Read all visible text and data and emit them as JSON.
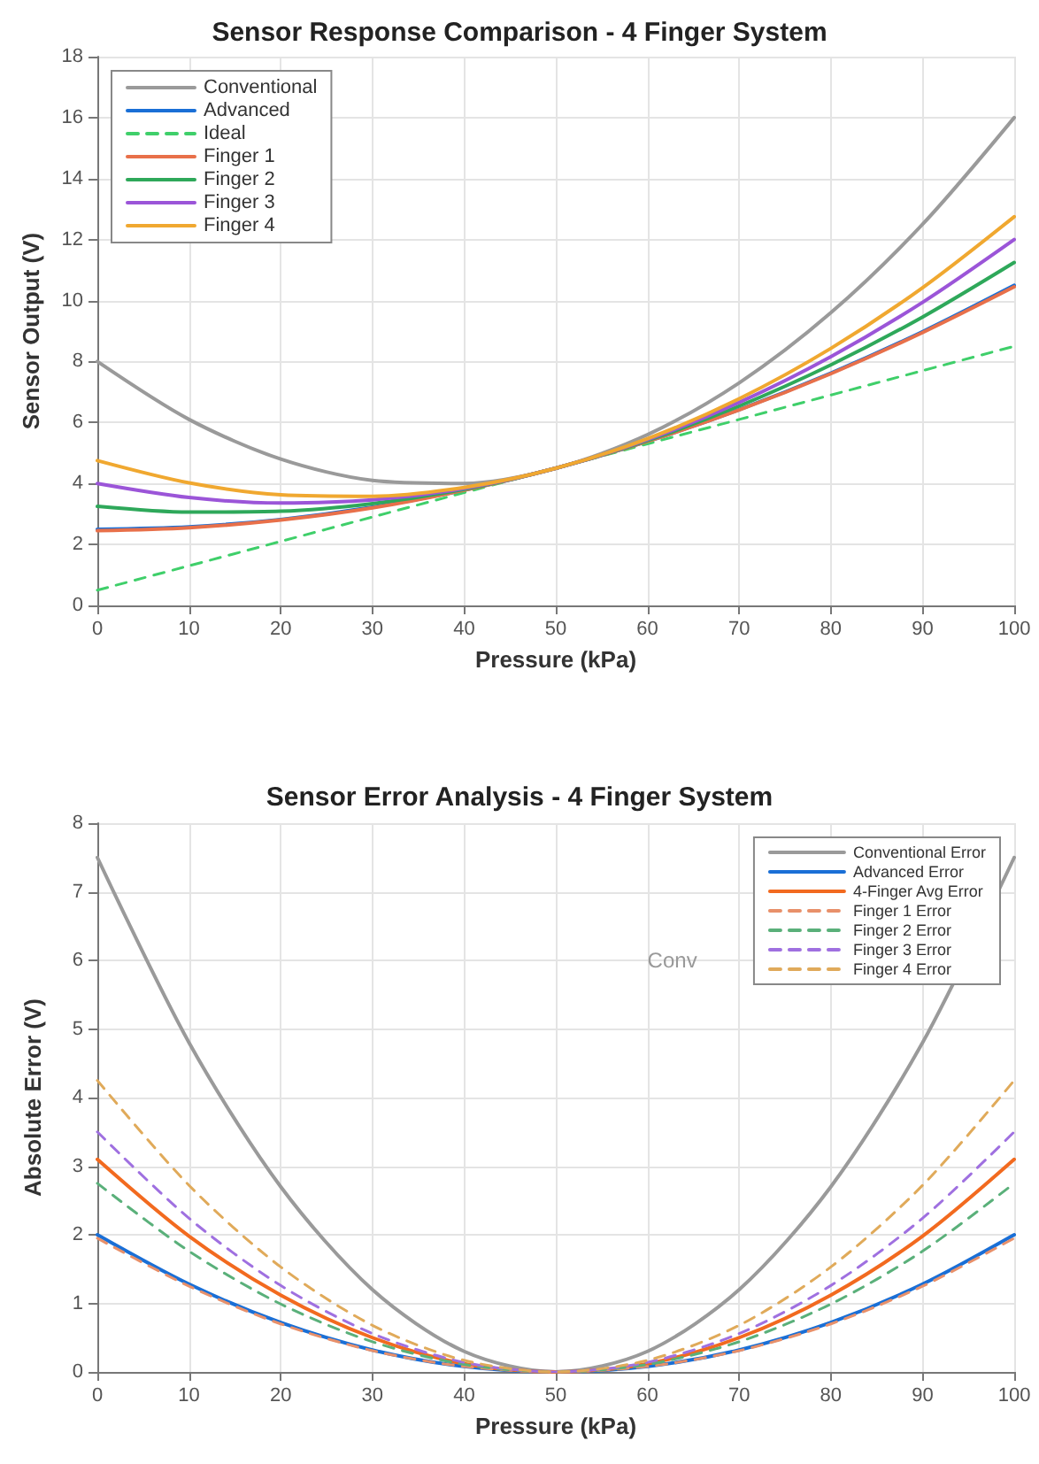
{
  "chart_data": [
    {
      "type": "line",
      "title": "Sensor Response Comparison - 4 Finger System",
      "xlabel": "Pressure (kPa)",
      "ylabel": "Sensor Output (V)",
      "x": [
        0,
        10,
        20,
        30,
        40,
        50,
        60,
        70,
        80,
        90,
        100
      ],
      "xlim": [
        0,
        100
      ],
      "xticks": [
        0,
        10,
        20,
        30,
        40,
        50,
        60,
        70,
        80,
        90,
        100
      ],
      "ylim": [
        0,
        18
      ],
      "yticks": [
        0,
        2,
        4,
        6,
        8,
        10,
        12,
        14,
        16,
        18
      ],
      "grid": true,
      "legend": "top left",
      "marker": "none",
      "series": [
        {
          "name": "Conventional",
          "color": "#9a9a9a",
          "line_style": "solid",
          "values": [
            8.0,
            6.1,
            4.8,
            4.1,
            4.0,
            4.5,
            5.6,
            7.3,
            9.6,
            12.5,
            16.0
          ]
        },
        {
          "name": "Advanced",
          "color": "#1a6fd6",
          "line_style": "solid",
          "values": [
            2.5,
            2.58,
            2.82,
            3.22,
            3.78,
            4.5,
            5.38,
            6.42,
            7.62,
            8.98,
            10.5
          ]
        },
        {
          "name": "Ideal",
          "color": "#3fcf6a",
          "line_style": "dashed",
          "values": [
            0.5,
            1.3,
            2.1,
            2.9,
            3.7,
            4.5,
            5.3,
            6.1,
            6.9,
            7.7,
            8.5
          ]
        },
        {
          "name": "Finger 1",
          "color": "#e8704a",
          "line_style": "solid",
          "values": [
            2.45,
            2.55,
            2.8,
            3.2,
            3.78,
            4.5,
            5.38,
            6.41,
            7.6,
            8.95,
            10.45
          ]
        },
        {
          "name": "Finger 2",
          "color": "#2ea85a",
          "line_style": "solid",
          "values": [
            3.25,
            3.06,
            3.09,
            3.34,
            3.81,
            4.5,
            5.41,
            6.54,
            7.89,
            9.46,
            11.25
          ]
        },
        {
          "name": "Finger 3",
          "color": "#9b55d8",
          "line_style": "solid",
          "values": [
            4.0,
            3.54,
            3.36,
            3.46,
            3.84,
            4.5,
            5.44,
            6.66,
            8.16,
            9.94,
            12.0
          ]
        },
        {
          "name": "Finger 4",
          "color": "#f0a830",
          "line_style": "solid",
          "values": [
            4.75,
            4.02,
            3.63,
            3.58,
            3.87,
            4.5,
            5.47,
            6.78,
            8.43,
            10.42,
            12.75
          ]
        }
      ]
    },
    {
      "type": "line",
      "title": "Sensor Error Analysis - 4 Finger System",
      "xlabel": "Pressure (kPa)",
      "ylabel": "Absolute Error (V)",
      "x": [
        0,
        10,
        20,
        30,
        40,
        50,
        60,
        70,
        80,
        90,
        100
      ],
      "xlim": [
        0,
        100
      ],
      "xticks": [
        0,
        10,
        20,
        30,
        40,
        50,
        60,
        70,
        80,
        90,
        100
      ],
      "ylim": [
        0,
        8
      ],
      "yticks": [
        0,
        1,
        2,
        3,
        4,
        5,
        6,
        7,
        8
      ],
      "grid": true,
      "legend": "top right",
      "marker": "none",
      "annotations": [
        "Conv"
      ],
      "series": [
        {
          "name": "Conventional Error",
          "color": "#9a9a9a",
          "line_style": "solid",
          "values": [
            7.5,
            4.8,
            2.7,
            1.2,
            0.3,
            0,
            0.3,
            1.2,
            2.7,
            4.8,
            7.5
          ]
        },
        {
          "name": "Advanced Error",
          "color": "#1a6fd6",
          "line_style": "solid",
          "values": [
            2.0,
            1.28,
            0.72,
            0.32,
            0.08,
            0,
            0.08,
            0.32,
            0.72,
            1.28,
            2.0
          ]
        },
        {
          "name": "4-Finger Avg Error",
          "color": "#f26a1f",
          "line_style": "solid",
          "values": [
            3.1,
            1.98,
            1.12,
            0.5,
            0.12,
            0,
            0.12,
            0.5,
            1.12,
            1.98,
            3.1
          ]
        },
        {
          "name": "Finger 1 Error",
          "color": "#e8906a",
          "line_style": "dashed",
          "values": [
            1.95,
            1.25,
            0.7,
            0.31,
            0.08,
            0,
            0.08,
            0.31,
            0.7,
            1.25,
            1.95
          ]
        },
        {
          "name": "Finger 2 Error",
          "color": "#5ab07a",
          "line_style": "dashed",
          "values": [
            2.75,
            1.76,
            0.99,
            0.44,
            0.11,
            0,
            0.11,
            0.44,
            0.99,
            1.76,
            2.75
          ]
        },
        {
          "name": "Finger 3 Error",
          "color": "#9f70e0",
          "line_style": "dashed",
          "values": [
            3.5,
            2.24,
            1.26,
            0.56,
            0.14,
            0,
            0.14,
            0.56,
            1.26,
            2.24,
            3.5
          ]
        },
        {
          "name": "Finger 4 Error",
          "color": "#e0aa5a",
          "line_style": "dashed",
          "values": [
            4.25,
            2.72,
            1.53,
            0.68,
            0.17,
            0,
            0.17,
            0.68,
            1.53,
            2.72,
            4.25
          ]
        }
      ]
    }
  ]
}
